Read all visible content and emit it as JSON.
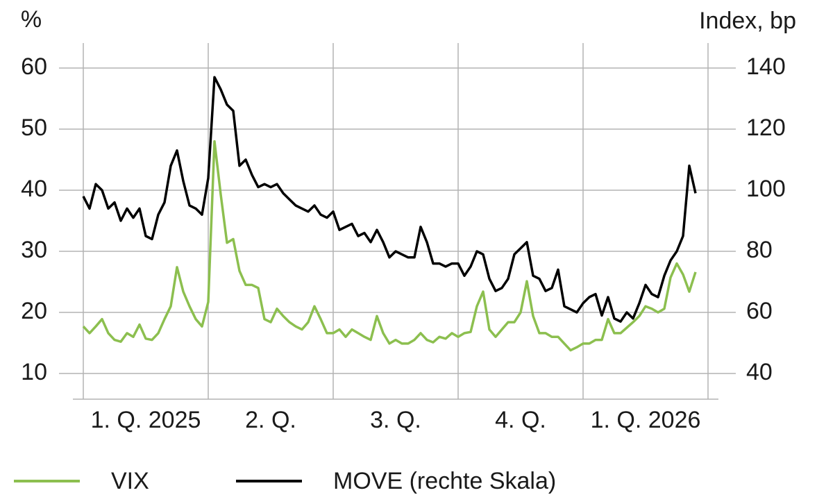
{
  "chart_data": {
    "type": "line",
    "y_label": "%",
    "y2_label": "Index, bp",
    "categories": [
      "1. Q. 2025",
      "2. Q.",
      "3. Q.",
      "4. Q.",
      "1. Q. 2026"
    ],
    "xlim": [
      0,
      5
    ],
    "xticks": [
      0,
      1,
      2,
      3,
      4,
      5
    ],
    "ylim": [
      10,
      60
    ],
    "yticks": [
      10,
      20,
      30,
      40,
      50,
      60
    ],
    "y2lim": [
      40,
      140
    ],
    "y2ticks": [
      40,
      60,
      80,
      100,
      120,
      140
    ],
    "grid": true,
    "legend": "bottom",
    "x": [
      0,
      0.05,
      0.1,
      0.15,
      0.2,
      0.25,
      0.3,
      0.35,
      0.4,
      0.45,
      0.5,
      0.55,
      0.6,
      0.65,
      0.7,
      0.75,
      0.8,
      0.85,
      0.9,
      0.95,
      1,
      1.05,
      1.1,
      1.15,
      1.2,
      1.25,
      1.3,
      1.35,
      1.4,
      1.45,
      1.5,
      1.55,
      1.6,
      1.65,
      1.7,
      1.75,
      1.8,
      1.85,
      1.9,
      1.95,
      2,
      2.05,
      2.1,
      2.15,
      2.2,
      2.25,
      2.3,
      2.35,
      2.4,
      2.45,
      2.5,
      2.55,
      2.6,
      2.65,
      2.7,
      2.75,
      2.8,
      2.85,
      2.9,
      2.95,
      3,
      3.05,
      3.1,
      3.15,
      3.2,
      3.25,
      3.3,
      3.35,
      3.4,
      3.45,
      3.5,
      3.55,
      3.6,
      3.65,
      3.7,
      3.75,
      3.8,
      3.85,
      3.9,
      3.95,
      4,
      4.05,
      4.1,
      4.15,
      4.2,
      4.25,
      4.3,
      4.35,
      4.4,
      4.45,
      4.5,
      4.55,
      4.6,
      4.65,
      4.7,
      4.75,
      4.8,
      4.85,
      4.9
    ],
    "series": [
      {
        "name": "VIX",
        "color": "#8cbf4f",
        "axis": "y",
        "values": [
          17.7,
          16.6,
          17.7,
          18.9,
          16.6,
          15.5,
          15.2,
          16.6,
          16,
          18,
          15.7,
          15.5,
          16.6,
          18.9,
          21,
          27.4,
          23.4,
          21,
          18.9,
          17.7,
          21.7,
          48,
          39.3,
          31.4,
          32,
          26.8,
          24.5,
          24.5,
          24,
          18.9,
          18.4,
          20.6,
          19.4,
          18.4,
          17.7,
          17.2,
          18.4,
          21,
          18.9,
          16.6,
          16.6,
          17.2,
          16,
          17.2,
          16.6,
          16,
          15.5,
          19.4,
          16.6,
          14.9,
          15.5,
          14.9,
          14.9,
          15.5,
          16.6,
          15.5,
          15.1,
          16,
          15.7,
          16.6,
          16,
          16.6,
          16.8,
          21,
          23.4,
          17.2,
          16,
          17.2,
          18.4,
          18.4,
          20,
          25.1,
          19.4,
          16.6,
          16.6,
          16,
          16,
          14.9,
          13.8,
          14.3,
          14.9,
          14.9,
          15.5,
          15.5,
          18.9,
          16.6,
          16.6,
          17.5,
          18.4,
          19.4,
          21,
          20.6,
          20,
          20.6,
          25.7,
          28,
          26.2,
          23.4,
          26.6
        ]
      },
      {
        "name": "MOVE (rechte Skala)",
        "color": "#000000",
        "axis": "y2",
        "values": [
          98,
          94,
          102,
          100,
          94,
          96,
          90,
          94,
          91,
          94,
          85,
          84,
          92,
          96,
          108,
          113,
          103,
          95,
          94,
          92,
          104,
          137,
          133,
          128,
          126,
          108,
          110,
          105,
          101,
          102,
          101,
          102,
          99,
          97,
          95,
          94,
          93,
          95,
          92,
          91,
          93,
          87,
          88,
          89,
          85,
          86,
          83,
          87,
          83,
          78,
          80,
          79,
          78,
          78,
          88,
          83,
          76,
          76,
          75,
          76,
          76,
          72,
          75,
          80,
          79,
          71,
          67,
          68,
          71,
          79,
          81,
          83,
          72,
          71,
          67,
          68,
          74,
          62,
          61,
          60,
          63,
          65,
          66,
          59,
          65,
          58,
          57,
          60,
          58,
          63,
          69,
          66,
          65,
          72,
          77,
          80,
          85,
          108,
          99
        ]
      }
    ]
  }
}
